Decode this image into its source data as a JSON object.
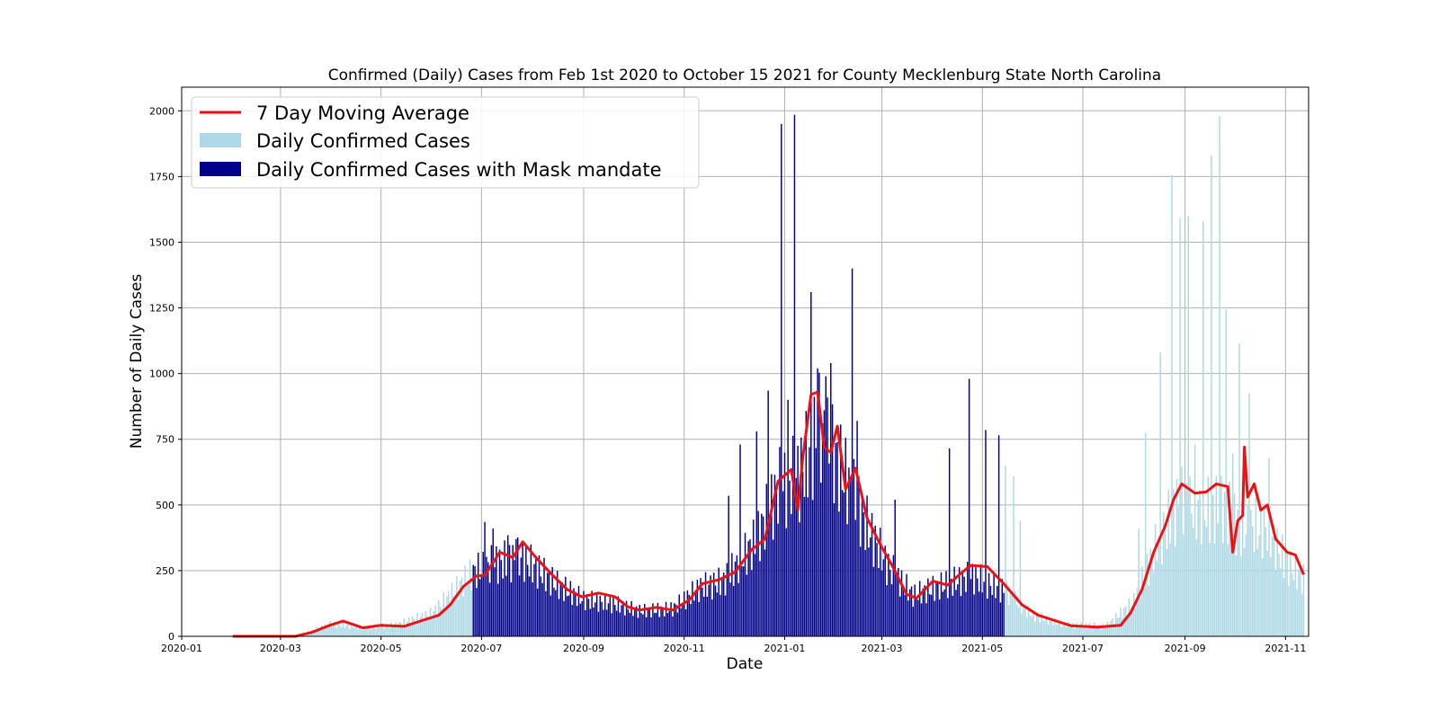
{
  "chart_data": {
    "type": "bar",
    "title": "Confirmed (Daily) Cases from Feb 1st 2020 to October 15 2021 for County Mecklenburg State North Carolina",
    "xlabel": "Date",
    "ylabel": "Number of Daily Cases",
    "xlim": [
      "2020-01-01",
      "2021-11-15"
    ],
    "ylim": [
      0,
      2090
    ],
    "grid": true,
    "legend_position": "top-left",
    "x_ticks": [
      "2020-01",
      "2020-03",
      "2020-05",
      "2020-07",
      "2020-09",
      "2020-11",
      "2021-01",
      "2021-03",
      "2021-05",
      "2021-07",
      "2021-09",
      "2021-11"
    ],
    "y_ticks": [
      0,
      250,
      500,
      750,
      1000,
      1250,
      1500,
      1750,
      2000
    ],
    "mask_mandate": [
      "2020-06-26",
      "2021-05-14"
    ],
    "colors": {
      "daily": "#add8e6",
      "mask": "#00008b",
      "avg": "#ee1111",
      "grid": "#b0b0b0"
    },
    "series": [
      {
        "name": "7 Day Moving Average",
        "kind": "line"
      },
      {
        "name": "Daily Confirmed Cases",
        "kind": "bar"
      },
      {
        "name": "Daily Confirmed Cases with Mask mandate",
        "kind": "bar"
      }
    ],
    "moving_average_points": [
      [
        "2020-02-01",
        0
      ],
      [
        "2020-03-10",
        0
      ],
      [
        "2020-03-20",
        15
      ],
      [
        "2020-03-31",
        42
      ],
      [
        "2020-04-08",
        58
      ],
      [
        "2020-04-20",
        32
      ],
      [
        "2020-05-01",
        42
      ],
      [
        "2020-05-15",
        38
      ],
      [
        "2020-05-25",
        58
      ],
      [
        "2020-06-05",
        80
      ],
      [
        "2020-06-12",
        120
      ],
      [
        "2020-06-20",
        190
      ],
      [
        "2020-06-28",
        230
      ],
      [
        "2020-07-03",
        232
      ],
      [
        "2020-07-12",
        320
      ],
      [
        "2020-07-20",
        300
      ],
      [
        "2020-07-26",
        360
      ],
      [
        "2020-08-03",
        300
      ],
      [
        "2020-08-12",
        240
      ],
      [
        "2020-08-22",
        178
      ],
      [
        "2020-08-31",
        150
      ],
      [
        "2020-09-10",
        165
      ],
      [
        "2020-09-20",
        150
      ],
      [
        "2020-09-28",
        112
      ],
      [
        "2020-10-05",
        100
      ],
      [
        "2020-10-15",
        110
      ],
      [
        "2020-10-25",
        100
      ],
      [
        "2020-11-04",
        138
      ],
      [
        "2020-11-12",
        200
      ],
      [
        "2020-11-22",
        215
      ],
      [
        "2020-12-02",
        245
      ],
      [
        "2020-12-12",
        330
      ],
      [
        "2020-12-20",
        370
      ],
      [
        "2020-12-28",
        590
      ],
      [
        "2021-01-05",
        635
      ],
      [
        "2021-01-09",
        480
      ],
      [
        "2021-01-12",
        680
      ],
      [
        "2021-01-17",
        920
      ],
      [
        "2021-01-21",
        930
      ],
      [
        "2021-01-25",
        720
      ],
      [
        "2021-01-29",
        700
      ],
      [
        "2021-02-02",
        800
      ],
      [
        "2021-02-07",
        560
      ],
      [
        "2021-02-13",
        640
      ],
      [
        "2021-02-20",
        450
      ],
      [
        "2021-02-28",
        350
      ],
      [
        "2021-03-08",
        260
      ],
      [
        "2021-03-16",
        160
      ],
      [
        "2021-03-22",
        145
      ],
      [
        "2021-04-01",
        210
      ],
      [
        "2021-04-10",
        195
      ],
      [
        "2021-04-18",
        240
      ],
      [
        "2021-04-24",
        270
      ],
      [
        "2021-05-04",
        265
      ],
      [
        "2021-05-14",
        200
      ],
      [
        "2021-05-25",
        120
      ],
      [
        "2021-06-04",
        80
      ],
      [
        "2021-06-14",
        60
      ],
      [
        "2021-06-24",
        40
      ],
      [
        "2021-07-10",
        35
      ],
      [
        "2021-07-24",
        42
      ],
      [
        "2021-07-30",
        90
      ],
      [
        "2021-08-06",
        180
      ],
      [
        "2021-08-13",
        320
      ],
      [
        "2021-08-20",
        420
      ],
      [
        "2021-08-25",
        520
      ],
      [
        "2021-08-30",
        580
      ],
      [
        "2021-09-07",
        545
      ],
      [
        "2021-09-14",
        550
      ],
      [
        "2021-09-20",
        580
      ],
      [
        "2021-09-27",
        570
      ],
      [
        "2021-09-30",
        320
      ],
      [
        "2021-10-03",
        440
      ],
      [
        "2021-10-06",
        460
      ],
      [
        "2021-10-07",
        720
      ],
      [
        "2021-10-09",
        530
      ],
      [
        "2021-10-13",
        580
      ],
      [
        "2021-10-17",
        480
      ],
      [
        "2021-10-21",
        500
      ],
      [
        "2021-10-26",
        370
      ],
      [
        "2021-11-02",
        320
      ],
      [
        "2021-11-07",
        310
      ],
      [
        "2021-11-12",
        235
      ]
    ],
    "daily_envelope": [
      [
        "2020-02-01",
        0
      ],
      [
        "2020-03-10",
        0
      ],
      [
        "2020-03-20",
        25
      ],
      [
        "2020-04-01",
        55
      ],
      [
        "2020-04-20",
        38
      ],
      [
        "2020-05-10",
        50
      ],
      [
        "2020-06-01",
        100
      ],
      [
        "2020-06-15",
        200
      ],
      [
        "2020-06-25",
        275
      ],
      [
        "2020-07-10",
        320
      ],
      [
        "2020-07-26",
        340
      ],
      [
        "2020-08-15",
        230
      ],
      [
        "2020-09-01",
        160
      ],
      [
        "2020-09-20",
        140
      ],
      [
        "2020-10-05",
        110
      ],
      [
        "2020-10-25",
        120
      ],
      [
        "2020-11-10",
        210
      ],
      [
        "2020-11-25",
        240
      ],
      [
        "2020-12-15",
        420
      ],
      [
        "2020-12-28",
        640
      ],
      [
        "2021-01-10",
        700
      ],
      [
        "2021-01-22",
        900
      ],
      [
        "2021-02-05",
        720
      ],
      [
        "2021-02-20",
        480
      ],
      [
        "2021-03-05",
        300
      ],
      [
        "2021-03-20",
        180
      ],
      [
        "2021-04-10",
        230
      ],
      [
        "2021-04-25",
        260
      ],
      [
        "2021-05-14",
        200
      ],
      [
        "2021-06-01",
        90
      ],
      [
        "2021-06-20",
        50
      ],
      [
        "2021-07-15",
        45
      ],
      [
        "2021-08-01",
        150
      ],
      [
        "2021-08-15",
        400
      ],
      [
        "2021-08-28",
        580
      ],
      [
        "2021-09-15",
        550
      ],
      [
        "2021-09-25",
        560
      ],
      [
        "2021-10-05",
        460
      ],
      [
        "2021-10-20",
        480
      ],
      [
        "2021-11-01",
        320
      ],
      [
        "2021-11-12",
        250
      ]
    ],
    "daily_spikes": [
      [
        "2020-07-03",
        435
      ],
      [
        "2020-07-08",
        410
      ],
      [
        "2020-07-17",
        385
      ],
      [
        "2020-07-22",
        370
      ],
      [
        "2020-11-28",
        535
      ],
      [
        "2020-12-05",
        730
      ],
      [
        "2020-12-15",
        780
      ],
      [
        "2020-12-22",
        935
      ],
      [
        "2020-12-30",
        1950
      ],
      [
        "2021-01-03",
        900
      ],
      [
        "2021-01-07",
        1985
      ],
      [
        "2021-01-17",
        1310
      ],
      [
        "2021-01-21",
        1020
      ],
      [
        "2021-01-26",
        990
      ],
      [
        "2021-01-29",
        1040
      ],
      [
        "2021-02-11",
        1400
      ],
      [
        "2021-02-14",
        820
      ],
      [
        "2021-03-09",
        520
      ],
      [
        "2021-04-11",
        715
      ],
      [
        "2021-04-23",
        980
      ],
      [
        "2021-05-03",
        785
      ],
      [
        "2021-05-11",
        765
      ],
      [
        "2021-05-15",
        650
      ],
      [
        "2021-05-20",
        610
      ],
      [
        "2021-05-24",
        440
      ],
      [
        "2021-08-04",
        410
      ],
      [
        "2021-08-08",
        775
      ],
      [
        "2021-08-17",
        1080
      ],
      [
        "2021-08-24",
        1755
      ],
      [
        "2021-08-29",
        1590
      ],
      [
        "2021-09-03",
        1600
      ],
      [
        "2021-09-07",
        730
      ],
      [
        "2021-09-12",
        1580
      ],
      [
        "2021-09-17",
        1830
      ],
      [
        "2021-09-22",
        1980
      ],
      [
        "2021-09-26",
        1245
      ],
      [
        "2021-09-30",
        695
      ],
      [
        "2021-10-04",
        1115
      ],
      [
        "2021-10-10",
        925
      ],
      [
        "2021-10-16",
        385
      ],
      [
        "2021-10-22",
        680
      ]
    ]
  }
}
